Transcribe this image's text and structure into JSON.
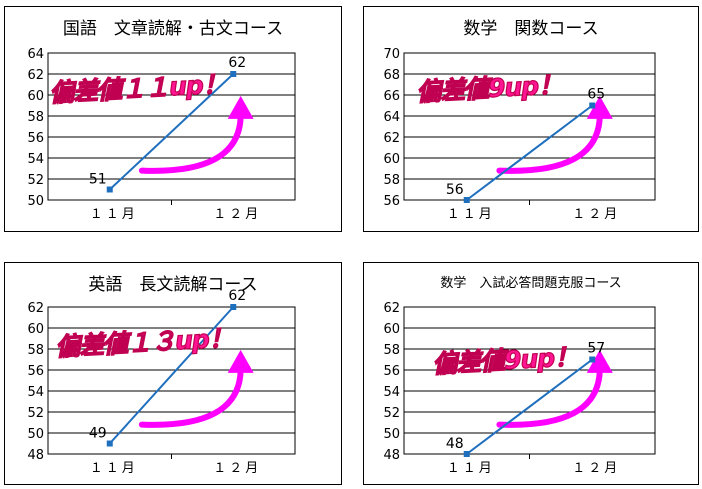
{
  "charts": [
    {
      "title": "国語　文章読解・古文コース",
      "badge": "偏差値１１up！"
    },
    {
      "title": "数学　関数コース",
      "badge": "偏差値9up！"
    },
    {
      "title": "英語　長文読解コース",
      "badge": "偏差値１３up！"
    },
    {
      "title": "数学　入試必答問題克服コース",
      "badge": "偏差値9up！"
    }
  ],
  "chart_data": [
    {
      "type": "line",
      "title": "国語　文章読解・古文コース",
      "categories": [
        "１１月",
        "１２月"
      ],
      "series": [
        {
          "values": [
            51,
            62
          ]
        }
      ],
      "ylim": [
        50,
        64
      ],
      "yticks": [
        50,
        52,
        54,
        56,
        58,
        60,
        62,
        64
      ],
      "grid": true,
      "line_color": "#1f6fbf",
      "arrow_color": "#ff00ff"
    },
    {
      "type": "line",
      "title": "数学　関数コース",
      "categories": [
        "１１月",
        "１２月"
      ],
      "series": [
        {
          "values": [
            56,
            65
          ]
        }
      ],
      "ylim": [
        56,
        70
      ],
      "yticks": [
        56,
        58,
        60,
        62,
        64,
        66,
        68,
        70
      ],
      "grid": true,
      "line_color": "#1f6fbf",
      "arrow_color": "#ff00ff"
    },
    {
      "type": "line",
      "title": "英語　長文読解コース",
      "categories": [
        "１１月",
        "１２月"
      ],
      "series": [
        {
          "values": [
            49,
            62
          ]
        }
      ],
      "ylim": [
        48,
        62
      ],
      "yticks": [
        48,
        50,
        52,
        54,
        56,
        58,
        60,
        62
      ],
      "grid": true,
      "line_color": "#1f6fbf",
      "arrow_color": "#ff00ff"
    },
    {
      "type": "line",
      "title": "数学　入試必答問題克服コース",
      "categories": [
        "１１月",
        "１２月"
      ],
      "series": [
        {
          "values": [
            48,
            57
          ]
        }
      ],
      "ylim": [
        48,
        62
      ],
      "yticks": [
        48,
        50,
        52,
        54,
        56,
        58,
        60,
        62
      ],
      "grid": true,
      "line_color": "#1f6fbf",
      "arrow_color": "#ff00ff"
    }
  ]
}
